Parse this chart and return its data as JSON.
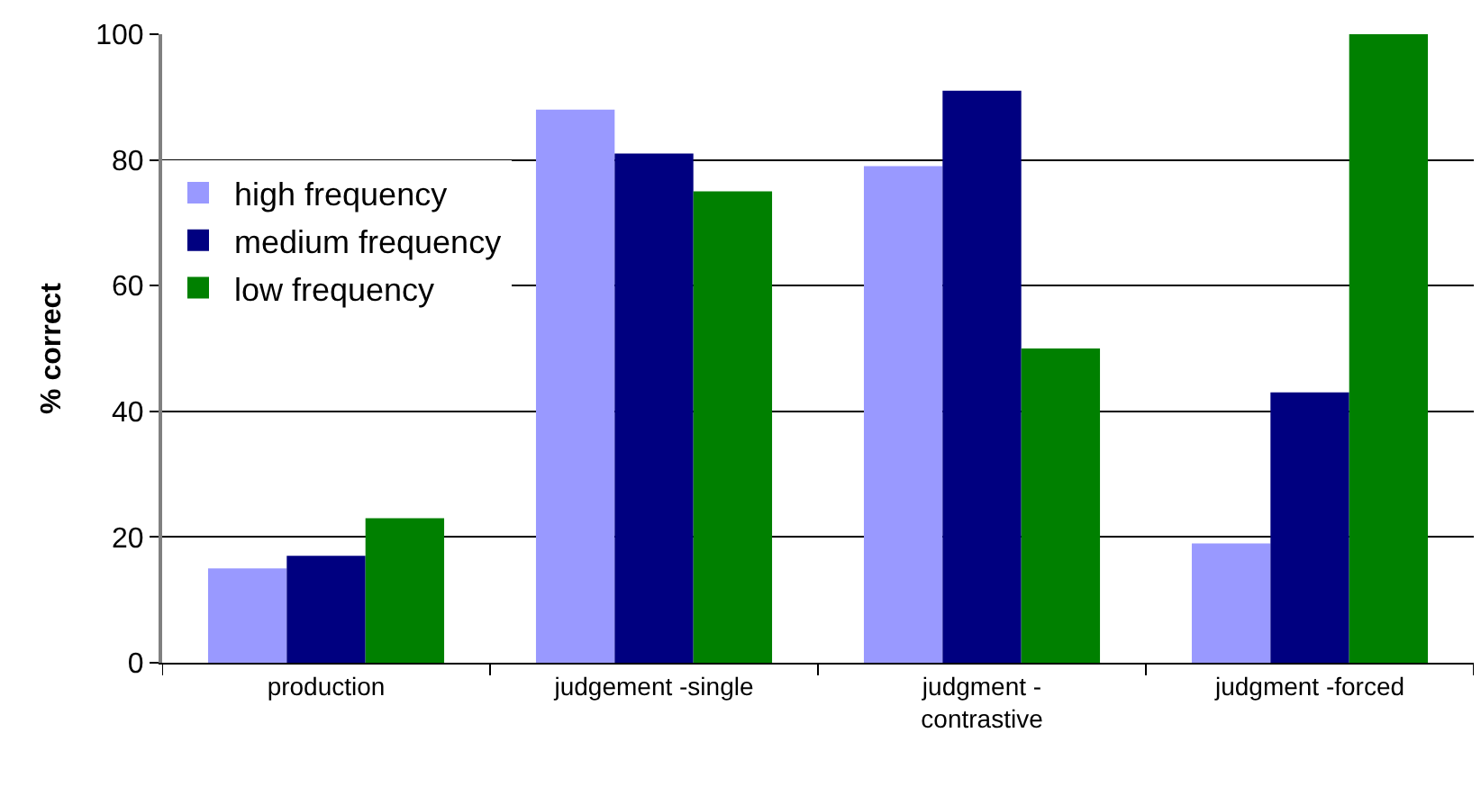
{
  "chart_data": {
    "type": "bar",
    "ylabel": "% correct",
    "categories": [
      "production",
      "judgement -single",
      "judgment -\ncontrastive",
      "judgment -forced"
    ],
    "series": [
      {
        "name": "high frequency",
        "color": "#9999ff",
        "values": [
          15,
          88,
          79,
          19
        ]
      },
      {
        "name": "medium frequency",
        "color": "#000080",
        "values": [
          17,
          81,
          91,
          43
        ]
      },
      {
        "name": "low frequency",
        "color": "#008000",
        "values": [
          23,
          75,
          50,
          100
        ]
      }
    ],
    "ylim": [
      0,
      100
    ],
    "yticks": [
      0,
      20,
      40,
      60,
      80,
      100
    ],
    "grid": "y",
    "legend": "top left"
  }
}
